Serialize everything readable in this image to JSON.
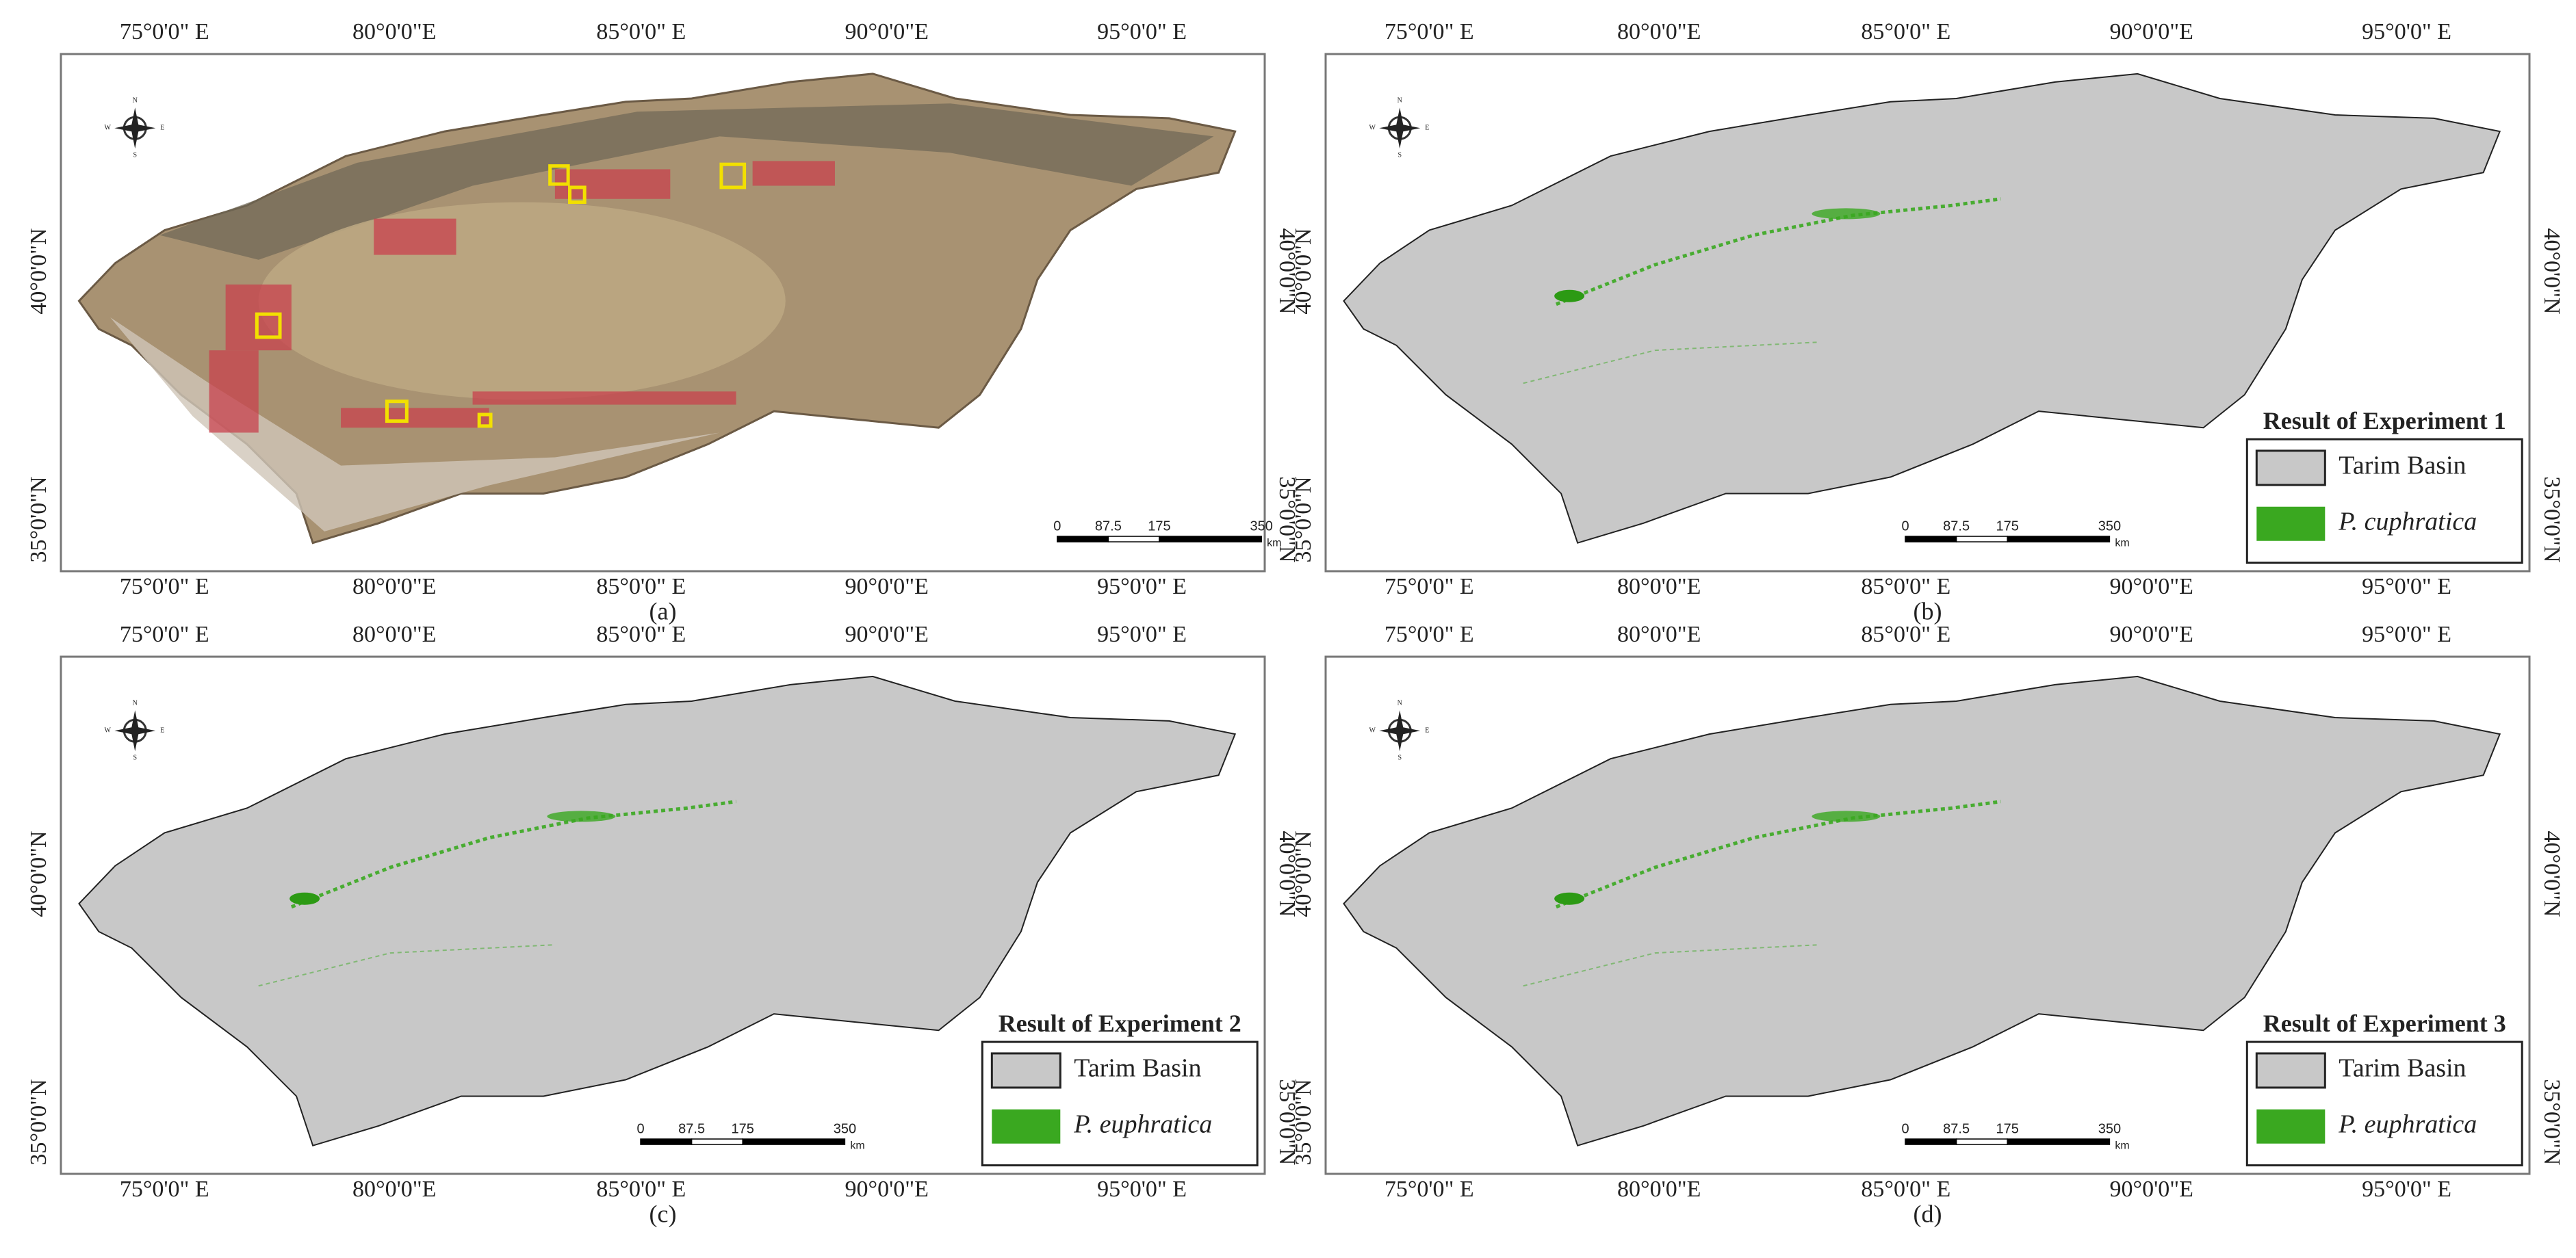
{
  "axes": {
    "lon_labels": [
      "75°0'0\" E",
      "80°0'0\"E",
      "85°0'0\" E",
      "90°0'0\"E",
      "95°0'0\" E"
    ],
    "lat_labels": [
      "40°0'0\"N",
      "35°0'0\"N"
    ]
  },
  "compass": [
    "N",
    "E",
    "S",
    "W"
  ],
  "scale_bar": {
    "labels": [
      "0",
      "87.5",
      "175",
      "350"
    ],
    "unit": "km"
  },
  "panels": [
    {
      "caption": "(a)"
    },
    {
      "caption": "(b)",
      "legend": {
        "title": "Result of Experiment 1",
        "items": [
          "Tarim Basin",
          "P. cuphratica"
        ]
      }
    },
    {
      "caption": "(c)",
      "legend": {
        "title": "Result of Experiment 2",
        "items": [
          "Tarim Basin",
          "P. euphratica"
        ]
      }
    },
    {
      "caption": "(d)",
      "legend": {
        "title": "Result of Experiment 3",
        "items": [
          "Tarim Basin",
          "P. euphratica"
        ]
      }
    }
  ]
}
